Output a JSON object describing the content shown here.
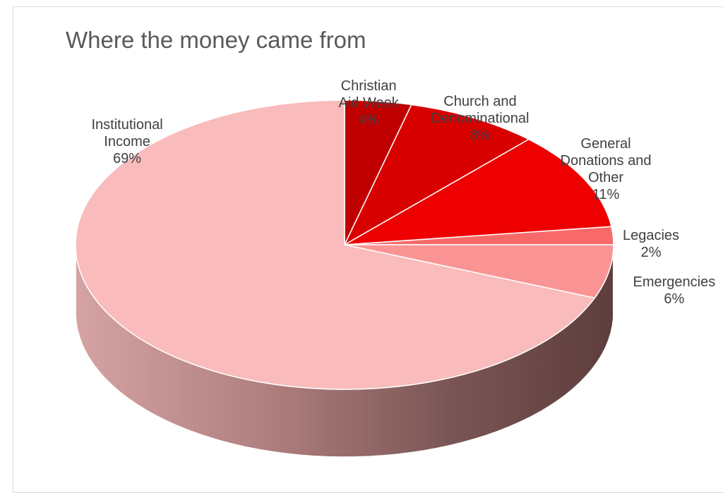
{
  "chart_data": {
    "type": "pie",
    "title": "Where the money came from",
    "categories": [
      "Christian Aid Week",
      "Church and Denominational",
      "General Donations and Other",
      "Legacies",
      "Emergencies",
      "Institutional Income"
    ],
    "values": [
      4,
      8,
      11,
      2,
      6,
      69
    ],
    "labels": [
      {
        "name": [
          "Christian",
          "Aid Week"
        ],
        "pct": "4%"
      },
      {
        "name": [
          "Church and",
          "Denominational"
        ],
        "pct": "8%"
      },
      {
        "name": [
          "General",
          "Donations and",
          "Other"
        ],
        "pct": "11%"
      },
      {
        "name": [
          "Legacies"
        ],
        "pct": "2%"
      },
      {
        "name": [
          "Emergencies"
        ],
        "pct": "6%"
      },
      {
        "name": [
          "Institutional",
          "Income"
        ],
        "pct": "69%"
      }
    ],
    "colors": [
      "#c00000",
      "#d90000",
      "#ee0000",
      "#f86a6a",
      "#fa9494",
      "#f9bbbb"
    ],
    "style": "3d"
  }
}
